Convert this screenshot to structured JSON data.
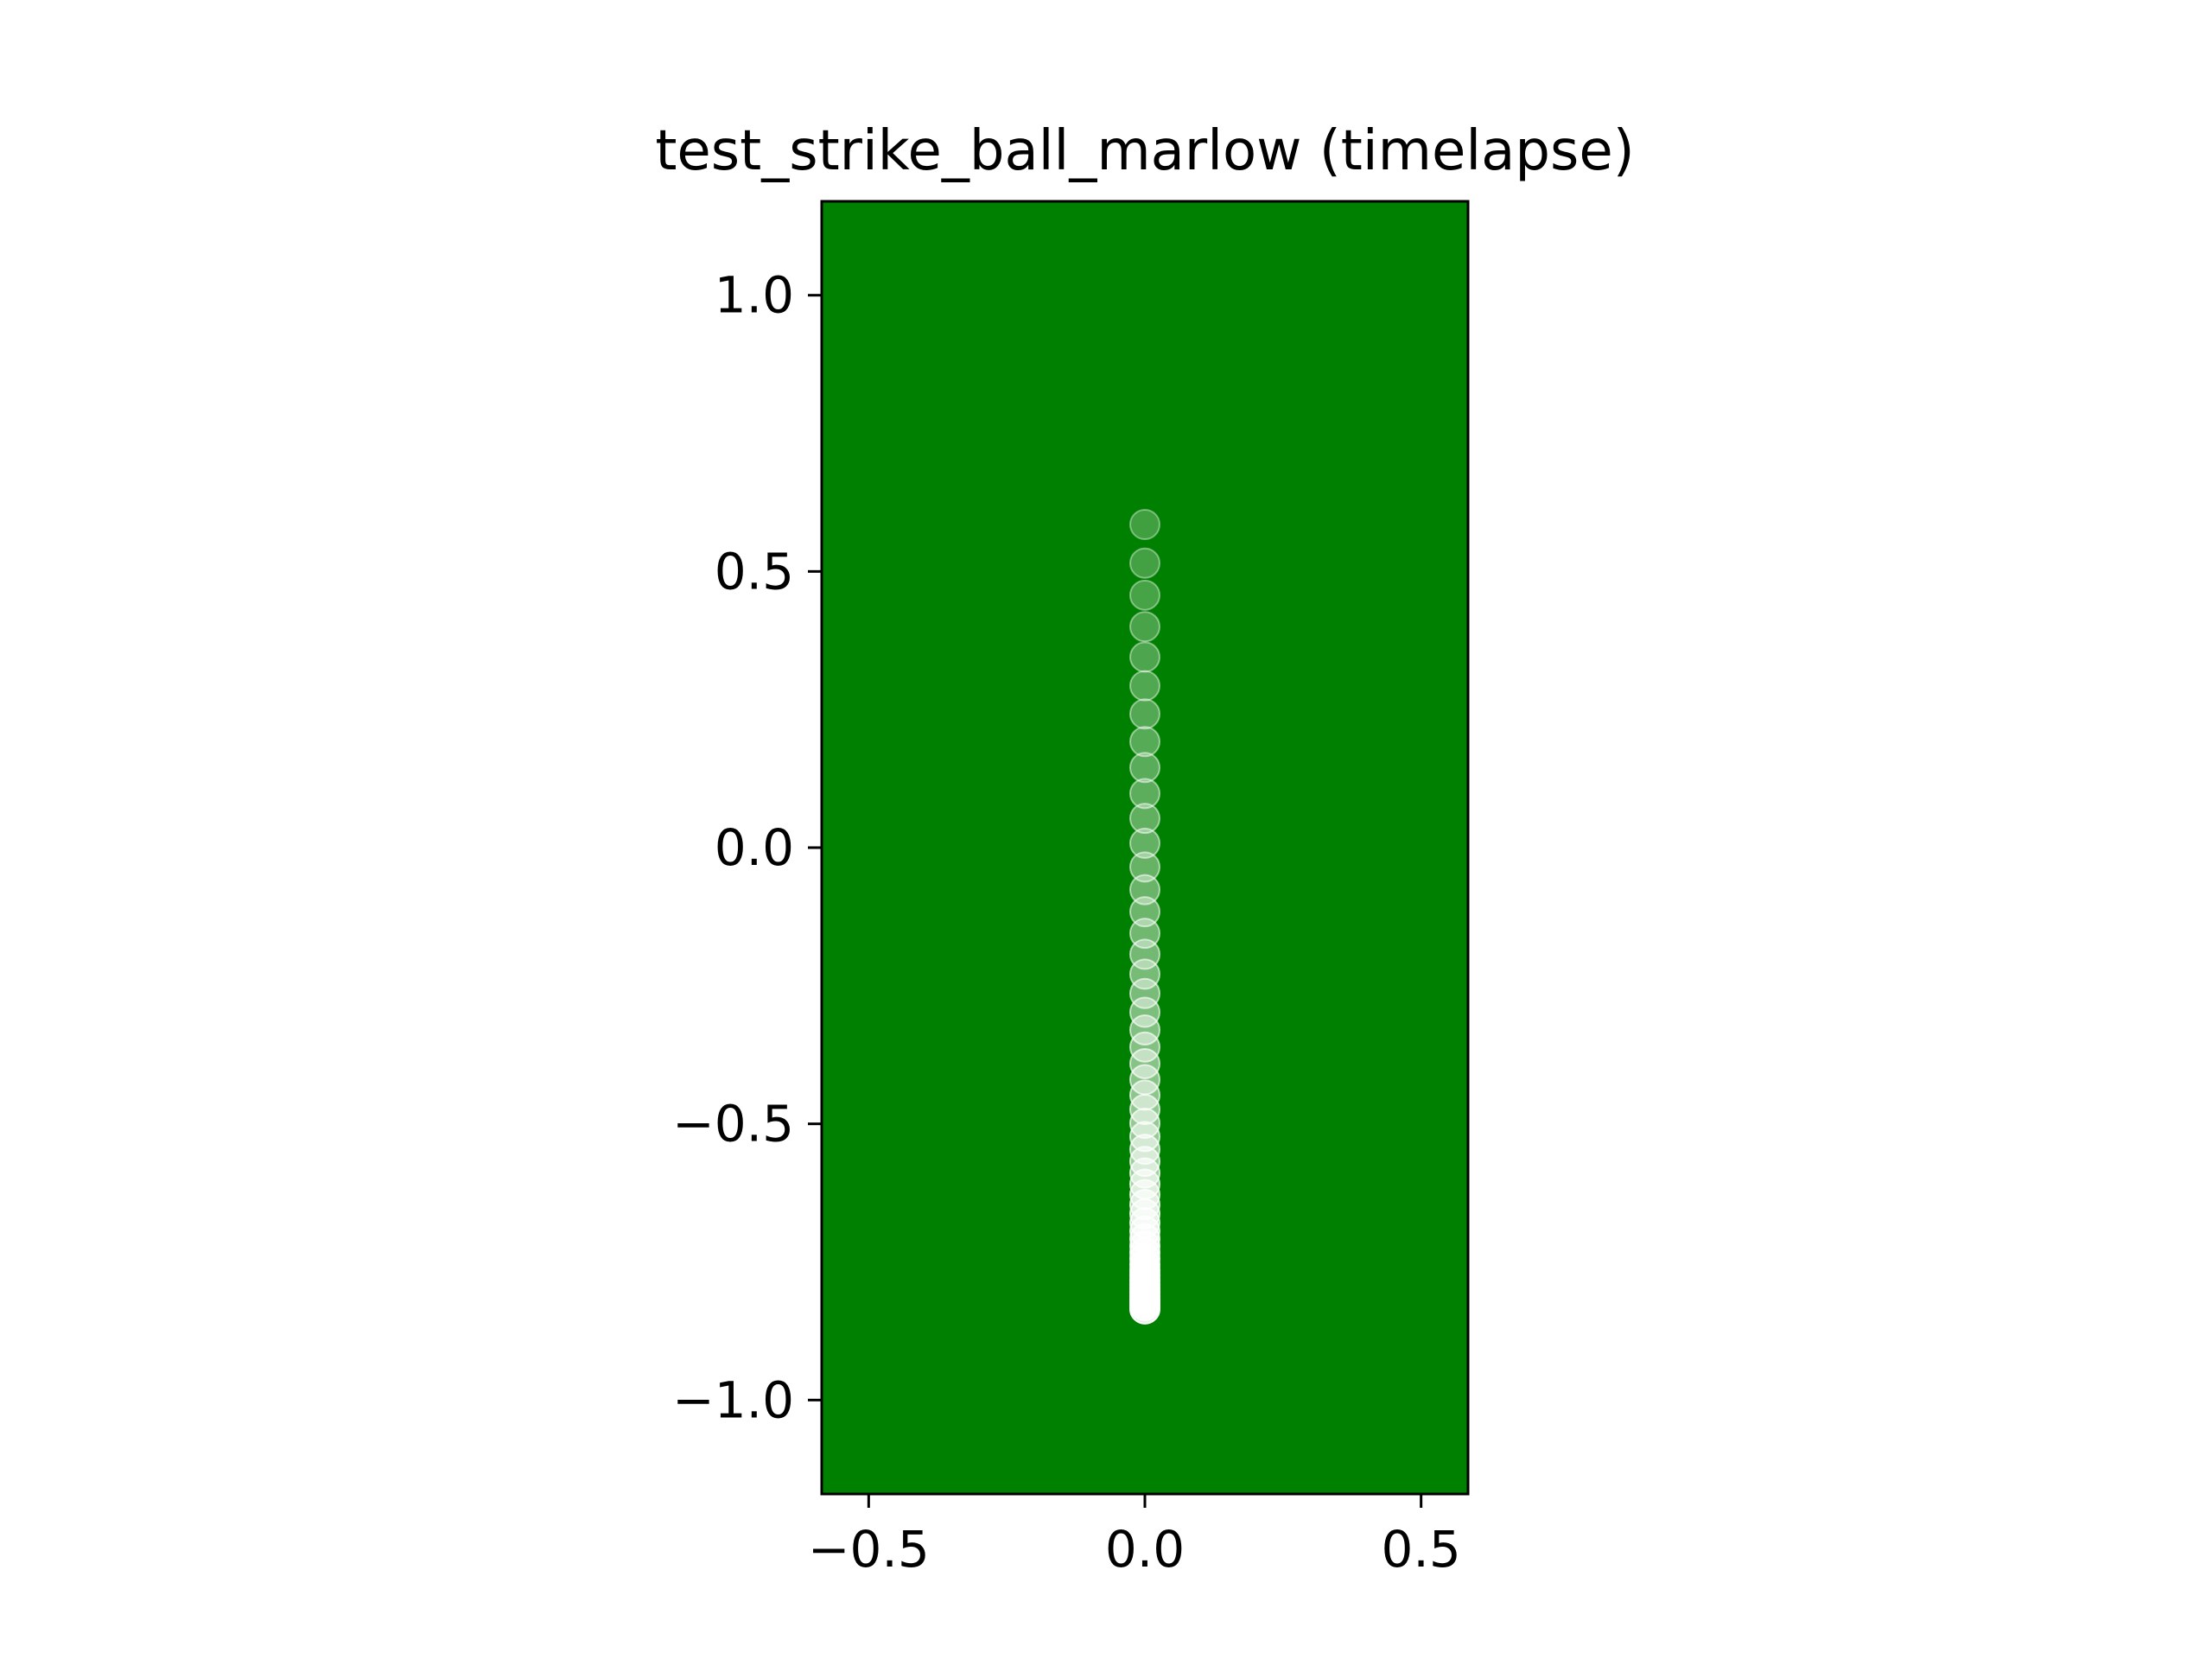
{
  "chart_data": {
    "type": "scatter",
    "title": "test_strike_ball_marlow (timelapse)",
    "xlabel": "",
    "ylabel": "",
    "xlim": [
      -0.585,
      0.585
    ],
    "ylim": [
      -1.17,
      1.17
    ],
    "xticks": [
      -0.5,
      0.0,
      0.5
    ],
    "xtick_labels": [
      "−0.5",
      "0.0",
      "0.5"
    ],
    "yticks": [
      -1.0,
      -0.5,
      0.0,
      0.5,
      1.0
    ],
    "ytick_labels": [
      "−1.0",
      "−0.5",
      "0.0",
      "0.5",
      "1.0"
    ],
    "grid": false,
    "legend": "none",
    "background_color": "#008000",
    "marker_color": "#ffffff",
    "marker_opacity_range": [
      0.25,
      0.9
    ],
    "series": [
      {
        "x": [
          0,
          0,
          0,
          0,
          0,
          0,
          0,
          0,
          0,
          0,
          0,
          0,
          0,
          0,
          0,
          0,
          0,
          0,
          0,
          0,
          0,
          0,
          0,
          0,
          0,
          0,
          0,
          0,
          0,
          0,
          0,
          0,
          0,
          0,
          0,
          0,
          0,
          0,
          0,
          0,
          0,
          0,
          0,
          0,
          0,
          0,
          0,
          0,
          0,
          0,
          0,
          0,
          0
        ],
        "y": [
          0.585,
          0.515,
          0.457,
          0.4,
          0.345,
          0.293,
          0.242,
          0.192,
          0.145,
          0.098,
          0.053,
          0.008,
          -0.035,
          -0.076,
          -0.116,
          -0.155,
          -0.193,
          -0.229,
          -0.264,
          -0.298,
          -0.33,
          -0.361,
          -0.391,
          -0.42,
          -0.448,
          -0.474,
          -0.499,
          -0.523,
          -0.546,
          -0.568,
          -0.589,
          -0.609,
          -0.628,
          -0.646,
          -0.663,
          -0.679,
          -0.694,
          -0.708,
          -0.721,
          -0.733,
          -0.744,
          -0.755,
          -0.765,
          -0.774,
          -0.783,
          -0.791,
          -0.798,
          -0.805,
          -0.812,
          -0.818,
          -0.824,
          -0.829,
          -0.835
        ]
      }
    ]
  }
}
